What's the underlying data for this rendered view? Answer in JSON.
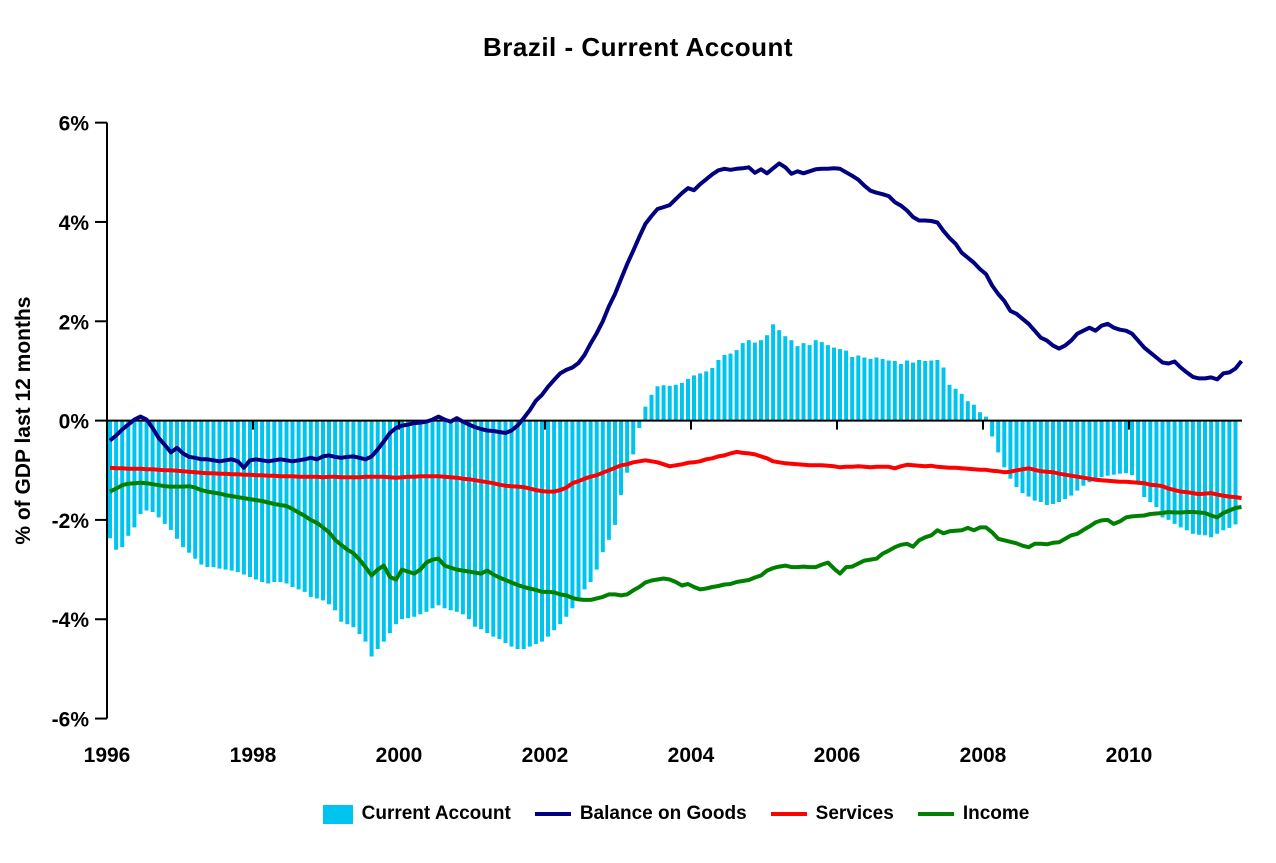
{
  "title": "Brazil - Current Account",
  "colors": {
    "background": "#FFFFFF",
    "axis": "#000000",
    "current_account": "#00C4F0",
    "balance_on_goods": "#000080",
    "services": "#FF0000",
    "income": "#008000"
  },
  "chart_data": {
    "type": "bar+line combo",
    "title": "Brazil - Current Account",
    "xlabel": "",
    "ylabel": "% of GDP last 12 months",
    "ylim": [
      -6,
      6
    ],
    "grid": "off",
    "legend_position": "bottom",
    "x_start_year": 1996.0,
    "x_step_months": 1,
    "x_ticks": [
      1996,
      1998,
      2000,
      2002,
      2004,
      2006,
      2008,
      2010
    ],
    "x_tick_labels": [
      "1996",
      "1998",
      "2000",
      "2002",
      "2004",
      "2006",
      "2008",
      "2010"
    ],
    "y_ticks": [
      6,
      4,
      2,
      0,
      -2,
      -4,
      -6
    ],
    "y_tick_labels": [
      "6%",
      "4%",
      "2%",
      "0%",
      "-2%",
      "-4%",
      "-6%"
    ],
    "series": [
      {
        "name": "Current Account",
        "type": "bar",
        "color": "#00C4F0",
        "values": [
          -2.37,
          -2.6,
          -2.55,
          -2.32,
          -2.15,
          -1.88,
          -1.81,
          -1.84,
          -1.95,
          -2.08,
          -2.2,
          -2.38,
          -2.55,
          -2.66,
          -2.78,
          -2.9,
          -2.95,
          -2.95,
          -2.98,
          -3.0,
          -3.02,
          -3.05,
          -3.1,
          -3.15,
          -3.2,
          -3.25,
          -3.28,
          -3.25,
          -3.25,
          -3.28,
          -3.35,
          -3.4,
          -3.45,
          -3.55,
          -3.58,
          -3.62,
          -3.7,
          -3.82,
          -4.05,
          -4.1,
          -4.16,
          -4.3,
          -4.45,
          -4.75,
          -4.6,
          -4.45,
          -4.28,
          -4.1,
          -4.0,
          -3.98,
          -3.95,
          -3.9,
          -3.85,
          -3.78,
          -3.72,
          -3.78,
          -3.82,
          -3.85,
          -3.9,
          -4.0,
          -4.15,
          -4.2,
          -4.28,
          -4.35,
          -4.4,
          -4.48,
          -4.55,
          -4.6,
          -4.6,
          -4.55,
          -4.5,
          -4.45,
          -4.35,
          -4.22,
          -4.1,
          -3.95,
          -3.78,
          -3.6,
          -3.4,
          -3.25,
          -3.0,
          -2.65,
          -2.4,
          -2.1,
          -1.5,
          -1.05,
          -0.68,
          -0.15,
          0.28,
          0.52,
          0.69,
          0.71,
          0.7,
          0.72,
          0.76,
          0.84,
          0.91,
          0.95,
          0.99,
          1.06,
          1.22,
          1.32,
          1.35,
          1.42,
          1.56,
          1.62,
          1.57,
          1.62,
          1.72,
          1.94,
          1.82,
          1.7,
          1.62,
          1.5,
          1.56,
          1.52,
          1.62,
          1.58,
          1.52,
          1.47,
          1.44,
          1.41,
          1.28,
          1.31,
          1.27,
          1.24,
          1.27,
          1.24,
          1.21,
          1.2,
          1.14,
          1.21,
          1.17,
          1.22,
          1.2,
          1.21,
          1.22,
          1.07,
          0.72,
          0.64,
          0.54,
          0.39,
          0.32,
          0.17,
          0.08,
          -0.32,
          -0.64,
          -0.94,
          -1.17,
          -1.34,
          -1.46,
          -1.53,
          -1.61,
          -1.64,
          -1.7,
          -1.68,
          -1.64,
          -1.58,
          -1.51,
          -1.41,
          -1.31,
          -1.24,
          -1.17,
          -1.14,
          -1.11,
          -1.09,
          -1.07,
          -1.06,
          -1.1,
          -1.24,
          -1.54,
          -1.64,
          -1.74,
          -1.95,
          -2.0,
          -2.08,
          -2.15,
          -2.21,
          -2.28,
          -2.3,
          -2.31,
          -2.35,
          -2.28,
          -2.21,
          -2.16,
          -2.09
        ]
      },
      {
        "name": "Balance on Goods",
        "type": "line",
        "color": "#000080",
        "values": [
          -0.4,
          -0.3,
          -0.18,
          -0.08,
          0.02,
          0.08,
          0.02,
          -0.15,
          -0.35,
          -0.49,
          -0.64,
          -0.55,
          -0.66,
          -0.73,
          -0.75,
          -0.78,
          -0.78,
          -0.8,
          -0.82,
          -0.8,
          -0.78,
          -0.82,
          -0.95,
          -0.8,
          -0.78,
          -0.8,
          -0.82,
          -0.8,
          -0.78,
          -0.8,
          -0.82,
          -0.8,
          -0.78,
          -0.75,
          -0.78,
          -0.72,
          -0.7,
          -0.73,
          -0.75,
          -0.73,
          -0.72,
          -0.75,
          -0.78,
          -0.72,
          -0.58,
          -0.42,
          -0.25,
          -0.15,
          -0.1,
          -0.08,
          -0.05,
          -0.04,
          -0.02,
          0.02,
          0.08,
          0.02,
          -0.02,
          0.05,
          -0.02,
          -0.08,
          -0.13,
          -0.17,
          -0.2,
          -0.21,
          -0.23,
          -0.25,
          -0.2,
          -0.1,
          0.05,
          0.21,
          0.4,
          0.52,
          0.68,
          0.82,
          0.95,
          1.02,
          1.07,
          1.16,
          1.32,
          1.55,
          1.76,
          2.0,
          2.3,
          2.55,
          2.85,
          3.15,
          3.42,
          3.7,
          3.96,
          4.12,
          4.26,
          4.3,
          4.34,
          4.46,
          4.58,
          4.68,
          4.64,
          4.76,
          4.86,
          4.96,
          5.04,
          5.07,
          5.05,
          5.07,
          5.08,
          5.1,
          4.99,
          5.06,
          4.98,
          5.08,
          5.18,
          5.1,
          4.97,
          5.02,
          4.98,
          5.02,
          5.06,
          5.07,
          5.07,
          5.08,
          5.07,
          5.0,
          4.93,
          4.85,
          4.73,
          4.63,
          4.59,
          4.56,
          4.52,
          4.4,
          4.33,
          4.23,
          4.1,
          4.03,
          4.03,
          4.02,
          3.99,
          3.82,
          3.68,
          3.56,
          3.38,
          3.28,
          3.18,
          3.05,
          2.95,
          2.72,
          2.55,
          2.41,
          2.21,
          2.15,
          2.05,
          1.95,
          1.81,
          1.67,
          1.61,
          1.51,
          1.45,
          1.51,
          1.61,
          1.75,
          1.81,
          1.87,
          1.81,
          1.91,
          1.95,
          1.87,
          1.83,
          1.81,
          1.75,
          1.61,
          1.47,
          1.37,
          1.27,
          1.17,
          1.15,
          1.19,
          1.07,
          0.97,
          0.88,
          0.85,
          0.85,
          0.87,
          0.83,
          0.95,
          0.97,
          1.05,
          1.2
        ]
      },
      {
        "name": "Services",
        "type": "line",
        "color": "#FF0000",
        "values": [
          -0.95,
          -0.96,
          -0.96,
          -0.97,
          -0.97,
          -0.97,
          -0.98,
          -0.98,
          -0.99,
          -1.0,
          -1.0,
          -1.01,
          -1.02,
          -1.03,
          -1.04,
          -1.05,
          -1.06,
          -1.06,
          -1.07,
          -1.07,
          -1.08,
          -1.08,
          -1.09,
          -1.09,
          -1.1,
          -1.1,
          -1.11,
          -1.11,
          -1.12,
          -1.12,
          -1.12,
          -1.13,
          -1.13,
          -1.13,
          -1.13,
          -1.14,
          -1.13,
          -1.13,
          -1.14,
          -1.14,
          -1.14,
          -1.14,
          -1.13,
          -1.13,
          -1.13,
          -1.13,
          -1.14,
          -1.15,
          -1.14,
          -1.13,
          -1.13,
          -1.12,
          -1.12,
          -1.12,
          -1.12,
          -1.13,
          -1.14,
          -1.15,
          -1.17,
          -1.18,
          -1.2,
          -1.22,
          -1.24,
          -1.26,
          -1.29,
          -1.31,
          -1.32,
          -1.33,
          -1.34,
          -1.37,
          -1.4,
          -1.42,
          -1.43,
          -1.43,
          -1.4,
          -1.35,
          -1.26,
          -1.22,
          -1.17,
          -1.13,
          -1.1,
          -1.05,
          -1.0,
          -0.95,
          -0.9,
          -0.88,
          -0.84,
          -0.82,
          -0.8,
          -0.82,
          -0.84,
          -0.88,
          -0.92,
          -0.9,
          -0.88,
          -0.85,
          -0.84,
          -0.82,
          -0.78,
          -0.76,
          -0.72,
          -0.7,
          -0.66,
          -0.63,
          -0.65,
          -0.66,
          -0.68,
          -0.72,
          -0.76,
          -0.82,
          -0.84,
          -0.86,
          -0.87,
          -0.88,
          -0.89,
          -0.9,
          -0.9,
          -0.9,
          -0.91,
          -0.92,
          -0.94,
          -0.93,
          -0.93,
          -0.92,
          -0.93,
          -0.94,
          -0.93,
          -0.93,
          -0.93,
          -0.96,
          -0.92,
          -0.89,
          -0.9,
          -0.91,
          -0.92,
          -0.91,
          -0.93,
          -0.94,
          -0.95,
          -0.95,
          -0.96,
          -0.97,
          -0.98,
          -0.99,
          -0.99,
          -1.01,
          -1.02,
          -1.04,
          -1.03,
          -1.0,
          -0.98,
          -0.96,
          -0.99,
          -1.02,
          -1.03,
          -1.04,
          -1.07,
          -1.09,
          -1.11,
          -1.13,
          -1.15,
          -1.17,
          -1.19,
          -1.2,
          -1.21,
          -1.22,
          -1.23,
          -1.23,
          -1.24,
          -1.25,
          -1.26,
          -1.29,
          -1.3,
          -1.32,
          -1.37,
          -1.4,
          -1.43,
          -1.44,
          -1.46,
          -1.48,
          -1.47,
          -1.46,
          -1.49,
          -1.51,
          -1.53,
          -1.54,
          -1.56
        ]
      },
      {
        "name": "Income",
        "type": "line",
        "color": "#008000",
        "values": [
          -1.43,
          -1.37,
          -1.3,
          -1.27,
          -1.26,
          -1.25,
          -1.26,
          -1.28,
          -1.3,
          -1.32,
          -1.33,
          -1.33,
          -1.33,
          -1.32,
          -1.35,
          -1.4,
          -1.43,
          -1.45,
          -1.47,
          -1.5,
          -1.52,
          -1.54,
          -1.56,
          -1.58,
          -1.6,
          -1.62,
          -1.65,
          -1.68,
          -1.7,
          -1.72,
          -1.78,
          -1.85,
          -1.92,
          -2.0,
          -2.06,
          -2.15,
          -2.25,
          -2.4,
          -2.5,
          -2.6,
          -2.67,
          -2.8,
          -2.95,
          -3.12,
          -3.0,
          -2.92,
          -3.15,
          -3.2,
          -3.0,
          -3.04,
          -3.08,
          -3.0,
          -2.86,
          -2.8,
          -2.78,
          -2.92,
          -2.96,
          -3.0,
          -3.02,
          -3.04,
          -3.06,
          -3.08,
          -3.02,
          -3.1,
          -3.16,
          -3.21,
          -3.26,
          -3.31,
          -3.35,
          -3.38,
          -3.41,
          -3.45,
          -3.45,
          -3.46,
          -3.5,
          -3.52,
          -3.57,
          -3.6,
          -3.61,
          -3.61,
          -3.58,
          -3.55,
          -3.5,
          -3.5,
          -3.52,
          -3.5,
          -3.42,
          -3.35,
          -3.26,
          -3.22,
          -3.2,
          -3.18,
          -3.2,
          -3.25,
          -3.32,
          -3.29,
          -3.35,
          -3.4,
          -3.38,
          -3.35,
          -3.33,
          -3.3,
          -3.29,
          -3.25,
          -3.23,
          -3.21,
          -3.16,
          -3.12,
          -3.02,
          -2.97,
          -2.94,
          -2.92,
          -2.95,
          -2.95,
          -2.94,
          -2.95,
          -2.95,
          -2.9,
          -2.86,
          -2.98,
          -3.08,
          -2.95,
          -2.94,
          -2.88,
          -2.82,
          -2.8,
          -2.78,
          -2.68,
          -2.62,
          -2.55,
          -2.5,
          -2.48,
          -2.54,
          -2.41,
          -2.35,
          -2.31,
          -2.21,
          -2.27,
          -2.23,
          -2.22,
          -2.21,
          -2.16,
          -2.21,
          -2.15,
          -2.15,
          -2.25,
          -2.38,
          -2.41,
          -2.44,
          -2.47,
          -2.52,
          -2.55,
          -2.48,
          -2.48,
          -2.49,
          -2.46,
          -2.45,
          -2.38,
          -2.31,
          -2.28,
          -2.2,
          -2.13,
          -2.05,
          -2.01,
          -2.0,
          -2.08,
          -2.03,
          -1.95,
          -1.93,
          -1.92,
          -1.91,
          -1.88,
          -1.87,
          -1.86,
          -1.84,
          -1.85,
          -1.85,
          -1.84,
          -1.84,
          -1.85,
          -1.86,
          -1.91,
          -1.95,
          -1.86,
          -1.81,
          -1.76,
          -1.74
        ]
      }
    ]
  }
}
